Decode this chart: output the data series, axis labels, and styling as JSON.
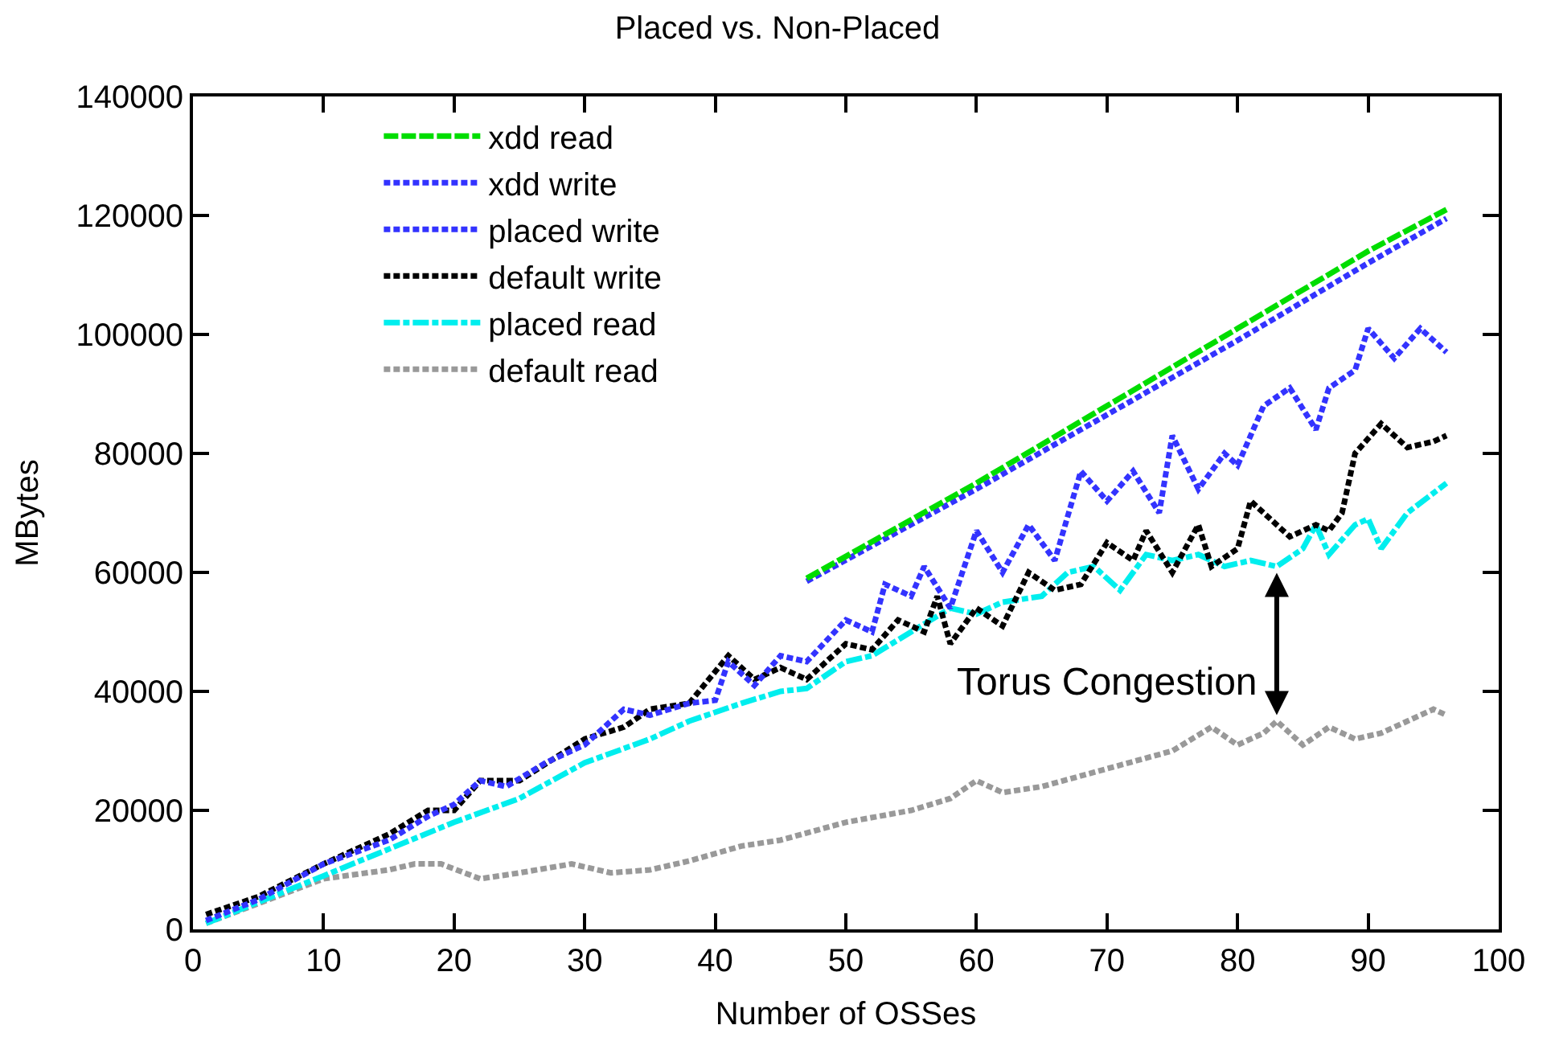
{
  "chart_data": {
    "type": "line",
    "title": "Placed vs. Non-Placed",
    "xlabel": "Number of OSSes",
    "ylabel": "MBytes",
    "xlim": [
      0,
      100
    ],
    "xticks": [
      0,
      10,
      20,
      30,
      40,
      50,
      60,
      70,
      80,
      90,
      100
    ],
    "ylim": [
      0,
      140000
    ],
    "yticks": [
      0,
      20000,
      40000,
      60000,
      80000,
      100000,
      120000,
      140000
    ],
    "grid": false,
    "legend": "top left",
    "marker": "none",
    "annotations": [
      {
        "text": "Torus Congestion",
        "x": 83,
        "y": 36000
      }
    ],
    "series": [
      {
        "name": "xdd read",
        "color": "#00dd00",
        "line_style": "dashed",
        "x": [
          47,
          60,
          70,
          80,
          90,
          96
        ],
        "values": [
          59000,
          75000,
          88000,
          101000,
          114000,
          121000
        ]
      },
      {
        "name": "xdd write",
        "color": "#3333ff",
        "line_style": "dotted",
        "x": [
          47,
          60,
          70,
          80,
          90,
          96
        ],
        "values": [
          58500,
          74000,
          86500,
          99000,
          112000,
          119500
        ]
      },
      {
        "name": "placed write",
        "color": "#3333ff",
        "line_style": "dotted",
        "x": [
          1,
          5,
          10,
          15,
          18,
          20,
          22,
          24,
          27,
          30,
          33,
          35,
          38,
          40,
          41,
          43,
          45,
          47,
          50,
          52,
          53,
          55,
          56,
          58,
          60,
          62,
          64,
          66,
          68,
          70,
          72,
          74,
          75,
          77,
          79,
          80,
          82,
          84,
          86,
          87,
          89,
          90,
          92,
          94,
          96
        ],
        "values": [
          1500,
          5000,
          11000,
          15000,
          19000,
          21000,
          25000,
          24000,
          28000,
          31000,
          37000,
          36000,
          38000,
          38500,
          45000,
          41000,
          46000,
          45000,
          52000,
          50000,
          58000,
          56000,
          61000,
          54000,
          67000,
          60000,
          68000,
          62000,
          77000,
          72000,
          77000,
          70000,
          83000,
          74000,
          80000,
          78000,
          88000,
          91000,
          84000,
          91000,
          94000,
          101000,
          96000,
          101000,
          97000
        ]
      },
      {
        "name": "default write",
        "color": "#000000",
        "line_style": "dotted",
        "x": [
          1,
          5,
          10,
          15,
          18,
          20,
          22,
          25,
          30,
          33,
          35,
          38,
          41,
          43,
          45,
          47,
          50,
          52,
          54,
          56,
          57,
          58,
          60,
          62,
          64,
          66,
          68,
          70,
          72,
          73,
          75,
          77,
          78,
          80,
          81,
          82,
          84,
          86,
          87,
          88,
          89,
          91,
          93,
          95,
          96
        ],
        "values": [
          2500,
          5500,
          11000,
          16000,
          20000,
          20000,
          25000,
          25000,
          32000,
          34000,
          37000,
          38000,
          46000,
          42000,
          44000,
          42000,
          48000,
          47000,
          52000,
          50000,
          56000,
          48000,
          54000,
          51000,
          60000,
          57000,
          58000,
          65000,
          62000,
          67000,
          60000,
          68000,
          61000,
          64000,
          72000,
          70000,
          66000,
          68000,
          67000,
          70000,
          80000,
          85000,
          81000,
          82000,
          83000
        ]
      },
      {
        "name": "placed read",
        "color": "#00eeee",
        "line_style": "dashdot",
        "x": [
          1,
          10,
          20,
          25,
          30,
          35,
          38,
          42,
          45,
          47,
          50,
          52,
          55,
          58,
          60,
          62,
          65,
          67,
          69,
          71,
          73,
          75,
          77,
          79,
          81,
          83,
          85,
          86,
          87,
          89,
          90,
          91,
          93,
          96
        ],
        "values": [
          1000,
          9000,
          18000,
          22000,
          28000,
          32000,
          35000,
          38000,
          40000,
          40500,
          45000,
          46000,
          50000,
          54000,
          53000,
          55000,
          56000,
          60000,
          61000,
          57000,
          63000,
          62000,
          63000,
          61000,
          62000,
          61000,
          64000,
          68000,
          63000,
          68000,
          69000,
          64000,
          70000,
          75000
        ]
      },
      {
        "name": "default read",
        "color": "#999999",
        "line_style": "dotted",
        "x": [
          1,
          10,
          15,
          17,
          19,
          22,
          25,
          29,
          32,
          35,
          38,
          42,
          45,
          50,
          55,
          58,
          60,
          62,
          65,
          70,
          75,
          78,
          80,
          82,
          83,
          85,
          87,
          89,
          91,
          93,
          95,
          96
        ],
        "values": [
          1000,
          8500,
          10000,
          11000,
          11000,
          8500,
          9500,
          11000,
          9500,
          10000,
          11500,
          14000,
          15000,
          18000,
          20000,
          22000,
          25000,
          23000,
          24000,
          27000,
          30000,
          34000,
          31000,
          33000,
          35000,
          31000,
          34000,
          32000,
          33000,
          35000,
          37000,
          36000
        ]
      }
    ]
  }
}
